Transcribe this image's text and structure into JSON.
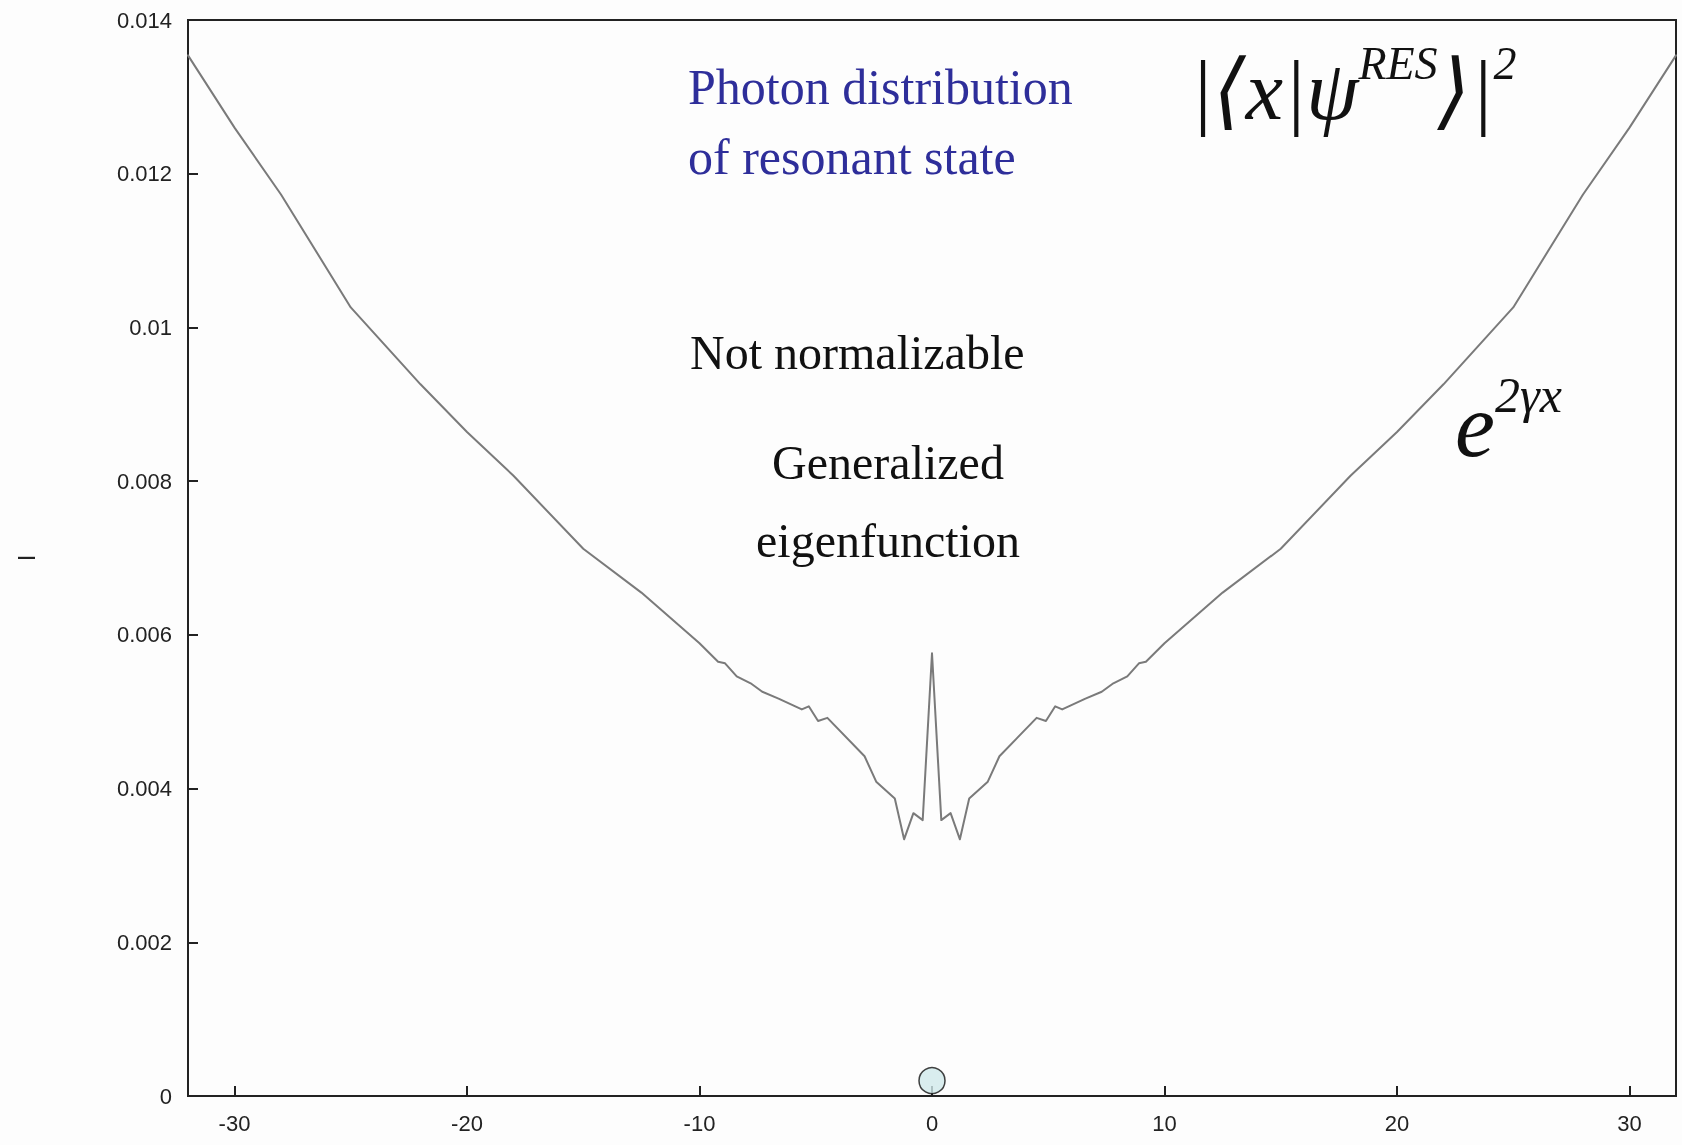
{
  "chart_data": {
    "type": "line",
    "ylabel": "I",
    "annotations": [
      "Photon distribution\nof resonant state",
      "|⟨x|ψ$^{RES}$⟩|$^{2}$",
      "Not normalizable",
      "Generalized\neigenfunction",
      "e$^{2γx}$"
    ],
    "series": [
      {
        "color": "#7a7a7a",
        "marker": "none",
        "x": [
          -32,
          -30,
          -28,
          -25,
          -22,
          -20,
          -18,
          -15,
          -12.5,
          -10,
          -9.2,
          -8.9,
          -8.4,
          -7.8,
          -7.3,
          -6.6,
          -5.6,
          -5.3,
          -4.9,
          -4.5,
          -2.9,
          -2.4,
          -1.6,
          -1.2,
          -0.8,
          -0.4,
          0,
          0.4,
          0.8,
          1.2,
          1.6,
          2.4,
          2.9,
          4.5,
          4.9,
          5.3,
          5.6,
          6.6,
          7.3,
          7.8,
          8.4,
          8.9,
          9.2,
          10,
          12.5,
          15,
          18,
          20,
          22,
          25,
          28,
          30,
          32
        ],
        "values": [
          0.01354,
          0.0126,
          0.01173,
          0.01026,
          0.00926,
          0.00864,
          0.00807,
          0.00712,
          0.00655,
          0.00589,
          0.00565,
          0.00563,
          0.00546,
          0.00537,
          0.00526,
          0.00517,
          0.00503,
          0.00507,
          0.00488,
          0.00492,
          0.00442,
          0.00409,
          0.00387,
          0.00334,
          0.00368,
          0.00359,
          0.00576,
          0.00359,
          0.00368,
          0.00334,
          0.00387,
          0.00409,
          0.00442,
          0.00492,
          0.00488,
          0.00507,
          0.00503,
          0.00517,
          0.00526,
          0.00537,
          0.00546,
          0.00563,
          0.00565,
          0.00589,
          0.00655,
          0.00712,
          0.00807,
          0.00864,
          0.00926,
          0.01026,
          0.01173,
          0.0126,
          0.01354
        ]
      },
      {
        "type": "scatter",
        "color": "#cfe9ea",
        "marker": "circle",
        "x": [
          0
        ],
        "values": [
          0.0002
        ]
      }
    ],
    "xlim": [
      -32,
      32
    ],
    "xticks": [
      -30,
      -20,
      -10,
      0,
      10,
      20,
      30
    ],
    "ylim": [
      0,
      0.014
    ],
    "yticks": [
      0,
      0.002,
      0.004,
      0.006,
      0.008,
      0.01,
      0.012,
      0.014
    ],
    "grid": false
  }
}
